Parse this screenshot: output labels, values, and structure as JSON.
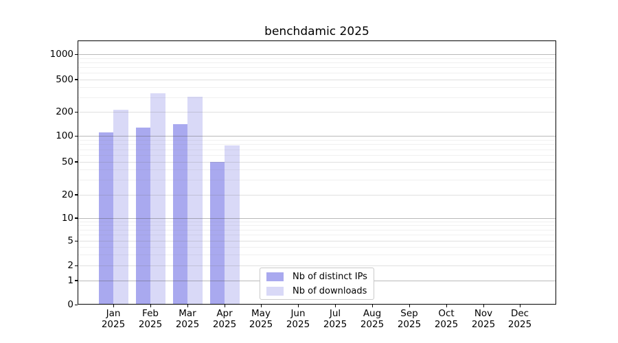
{
  "chart_data": {
    "type": "bar",
    "title": "benchdamic 2025",
    "categories": [
      "Jan",
      "Feb",
      "Mar",
      "Apr",
      "May",
      "Jun",
      "Jul",
      "Aug",
      "Sep",
      "Oct",
      "Nov",
      "Dec"
    ],
    "category_year": "2025",
    "series": [
      {
        "name": "Nb of distinct IPs",
        "color": "#a9a9ef",
        "values": [
          110,
          128,
          142,
          50,
          0,
          0,
          0,
          0,
          0,
          0,
          0,
          0
        ]
      },
      {
        "name": "Nb of downloads",
        "color": "#d9d9f7",
        "values": [
          215,
          340,
          305,
          78,
          0,
          0,
          0,
          0,
          0,
          0,
          0,
          0
        ]
      }
    ],
    "xlabel": "",
    "ylabel": "",
    "yscale": "symlog",
    "ylim": [
      0,
      1000
    ],
    "yticks": [
      0,
      1,
      2,
      5,
      10,
      20,
      50,
      100,
      200,
      500,
      1000
    ],
    "grid": "on",
    "grid_on_top_of_bars": true,
    "legend": {
      "position": "bottom-center",
      "entries": [
        "Nb of distinct IPs",
        "Nb of downloads"
      ]
    }
  }
}
